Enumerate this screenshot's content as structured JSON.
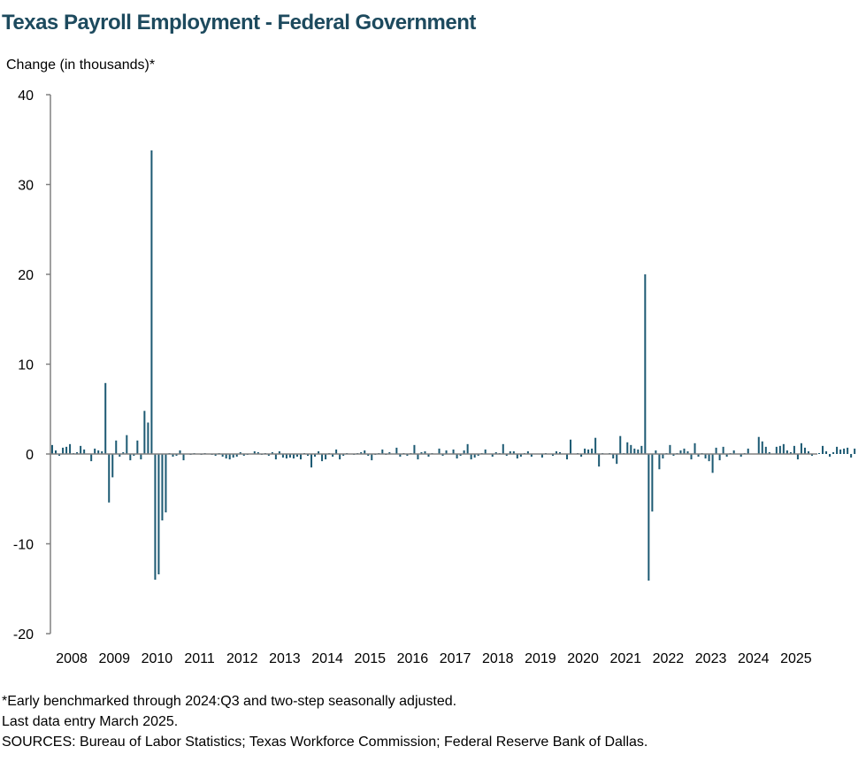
{
  "chart_data": {
    "type": "bar",
    "title": "Texas Payroll Employment - Federal Government",
    "ylabel": "Change (in thousands)*",
    "xlabel": "",
    "ylim": [
      -20,
      40
    ],
    "yticks": [
      -20,
      -10,
      0,
      10,
      20,
      30,
      40
    ],
    "year_labels": [
      "2008",
      "2009",
      "2010",
      "2011",
      "2012",
      "2013",
      "2014",
      "2015",
      "2016",
      "2017",
      "2018",
      "2019",
      "2020",
      "2021",
      "2022",
      "2023",
      "2024",
      "2025"
    ],
    "start": "2008-01",
    "end": "2025-03",
    "bar_color": "#1d5a73",
    "grid": false,
    "legend": "none",
    "values": [
      1.0,
      0.4,
      -0.2,
      0.7,
      0.8,
      1.1,
      0.1,
      0.2,
      0.9,
      0.5,
      0.0,
      -0.8,
      0.6,
      0.4,
      0.3,
      7.9,
      -5.4,
      -2.6,
      1.5,
      -0.3,
      0.2,
      2.1,
      -0.7,
      -0.2,
      1.5,
      -0.6,
      4.8,
      3.5,
      33.8,
      -14.0,
      -13.4,
      -7.4,
      -6.5,
      0.1,
      -0.3,
      -0.2,
      0.4,
      -0.7,
      0.0,
      -0.1,
      0.1,
      0.0,
      -0.1,
      0.1,
      0.0,
      -0.1,
      -0.2,
      0.1,
      -0.3,
      -0.5,
      -0.6,
      -0.4,
      -0.3,
      0.2,
      -0.2,
      -0.1,
      0.0,
      0.3,
      0.2,
      -0.1,
      0.1,
      -0.2,
      0.2,
      -0.6,
      0.3,
      -0.4,
      -0.5,
      -0.4,
      -0.5,
      -0.3,
      -0.6,
      0.1,
      -0.2,
      -1.5,
      -0.3,
      0.3,
      -0.8,
      -0.6,
      0.1,
      -0.3,
      0.5,
      -0.6,
      -0.2,
      0.1,
      0.0,
      -0.1,
      0.1,
      0.2,
      0.4,
      -0.2,
      -0.7,
      -0.1,
      0.1,
      0.5,
      -0.1,
      0.2,
      0.0,
      0.7,
      -0.3,
      0.1,
      -0.2,
      0.1,
      1.0,
      -0.6,
      0.2,
      0.3,
      -0.3,
      0.1,
      0.0,
      0.6,
      -0.2,
      0.4,
      0.0,
      0.5,
      -0.5,
      -0.2,
      0.4,
      1.1,
      -0.6,
      -0.4,
      -0.2,
      0.1,
      0.5,
      0.0,
      -0.3,
      0.2,
      0.1,
      1.1,
      -0.2,
      0.3,
      0.3,
      -0.5,
      -0.3,
      0.1,
      0.3,
      -0.3,
      0.0,
      0.0,
      -0.4,
      0.1,
      0.0,
      -0.2,
      0.3,
      0.2,
      0.0,
      -0.6,
      1.6,
      0.0,
      0.1,
      -0.3,
      0.6,
      0.5,
      0.6,
      1.8,
      -1.4,
      0.1,
      0.0,
      0.1,
      -0.5,
      -1.1,
      2.0,
      0.1,
      1.3,
      1.0,
      0.6,
      0.5,
      0.9,
      20.0,
      -14.1,
      -6.4,
      0.4,
      -1.7,
      -0.5,
      0.1,
      1.0,
      -0.2,
      0.1,
      0.4,
      0.6,
      0.3,
      -0.6,
      1.2,
      -0.3,
      0.1,
      -0.5,
      -0.8,
      -2.1,
      0.7,
      -0.7,
      0.8,
      -0.3,
      0.1,
      0.4,
      0.0,
      -0.3,
      0.1,
      0.6,
      0.0,
      0.0,
      1.9,
      1.4,
      0.8,
      0.2,
      0.0,
      0.8,
      0.9,
      1.1,
      0.4,
      0.2,
      0.9,
      -0.6,
      1.2,
      0.7,
      0.3,
      -0.2,
      0.0,
      0.1,
      0.9,
      0.3,
      -0.3,
      0.2,
      0.8,
      0.5,
      0.6,
      0.7,
      -0.4,
      0.6,
      0.0,
      0.0,
      0.0,
      0.0
    ]
  },
  "footnotes": {
    "line1": "*Early benchmarked through 2024:Q3 and two-step seasonally adjusted.",
    "line2": "Last data entry March 2025.",
    "line3": "SOURCES: Bureau of Labor Statistics; Texas Workforce Commission; Federal Reserve Bank of Dallas."
  }
}
